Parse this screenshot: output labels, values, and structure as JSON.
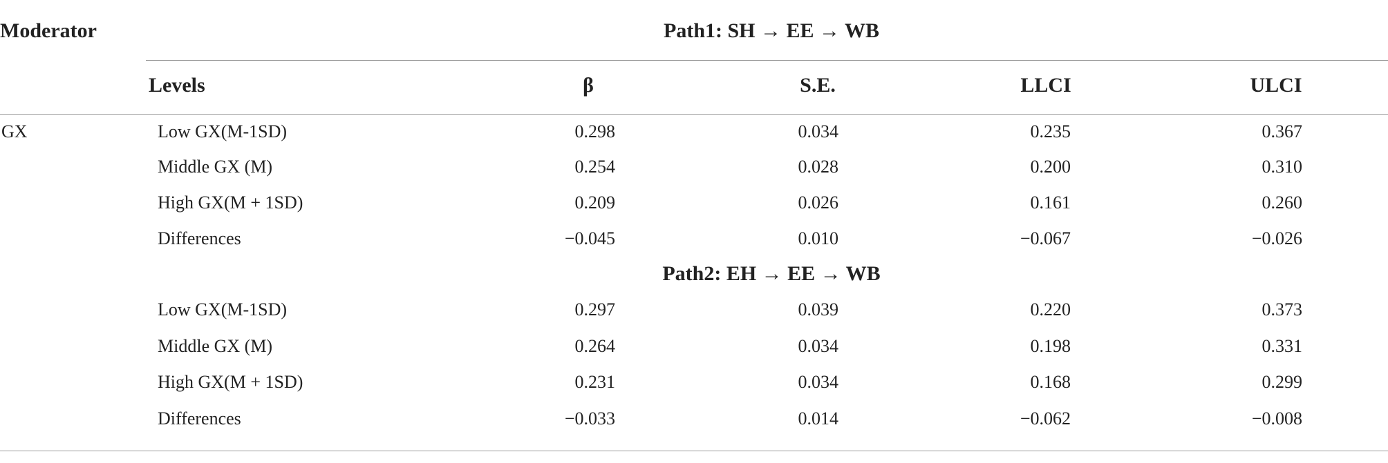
{
  "table": {
    "moderator_header": "Moderator",
    "levels_header": "Levels",
    "columns": [
      "β",
      "S.E.",
      "LLCI",
      "ULCI"
    ],
    "moderator": "GX",
    "panels": [
      {
        "title": "Path1: SH → EE → WB",
        "rows": [
          {
            "level": "Low GX(M-1SD)",
            "values": [
              "0.298",
              "0.034",
              "0.235",
              "0.367"
            ]
          },
          {
            "level": "Middle GX (M)",
            "values": [
              "0.254",
              "0.028",
              "0.200",
              "0.310"
            ]
          },
          {
            "level": "High GX(M + 1SD)",
            "values": [
              "0.209",
              "0.026",
              "0.161",
              "0.260"
            ]
          },
          {
            "level": "Differences",
            "values": [
              "−0.045",
              "0.010",
              "−0.067",
              "−0.026"
            ]
          }
        ]
      },
      {
        "title": "Path2: EH → EE → WB",
        "rows": [
          {
            "level": "Low GX(M-1SD)",
            "values": [
              "0.297",
              "0.039",
              "0.220",
              "0.373"
            ]
          },
          {
            "level": "Middle GX (M)",
            "values": [
              "0.264",
              "0.034",
              "0.198",
              "0.331"
            ]
          },
          {
            "level": "High GX(M + 1SD)",
            "values": [
              "0.231",
              "0.034",
              "0.168",
              "0.299"
            ]
          },
          {
            "level": "Differences",
            "values": [
              "−0.033",
              "0.014",
              "−0.062",
              "−0.008"
            ]
          }
        ]
      }
    ]
  }
}
